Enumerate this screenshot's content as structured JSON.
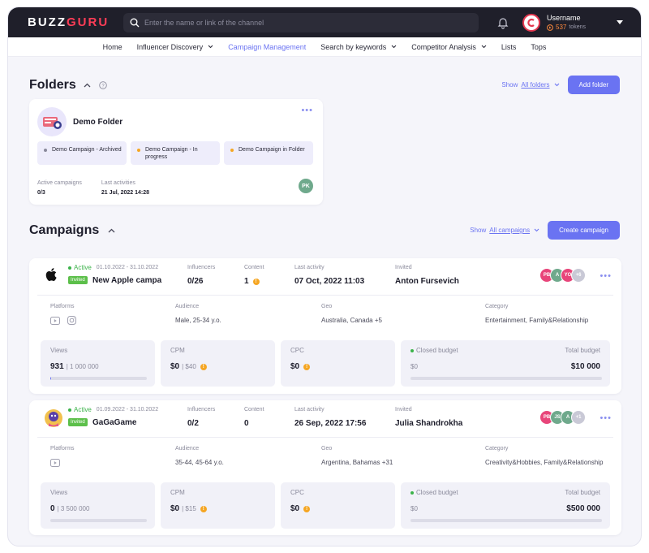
{
  "brand": {
    "logo_left": "BUZZ",
    "logo_accent": "GURU",
    "accent_color": "#6a73f2"
  },
  "search": {
    "placeholder": "Enter the name or link of the channel"
  },
  "user": {
    "name": "Username",
    "tokens_value": "537",
    "tokens_label": "tokens"
  },
  "nav": [
    {
      "label": "Home",
      "has_menu": false,
      "active": false
    },
    {
      "label": "Influencer Discovery",
      "has_menu": true,
      "active": false
    },
    {
      "label": "Campaign Management",
      "has_menu": false,
      "active": true
    },
    {
      "label": "Search by keywords",
      "has_menu": true,
      "active": false
    },
    {
      "label": "Competitor Analysis",
      "has_menu": true,
      "active": false
    },
    {
      "label": "Lists",
      "has_menu": false,
      "active": false
    },
    {
      "label": "Tops",
      "has_menu": false,
      "active": false
    }
  ],
  "folders": {
    "title": "Folders",
    "show_label": "Show",
    "show_value": "All folders",
    "add_button": "Add folder",
    "card": {
      "name": "Demo Folder",
      "more": "•••",
      "chips": [
        {
          "label": "Demo Campaign - Archived",
          "dot_color": "#8a8a9b"
        },
        {
          "label": "Demo Campaign - In progress",
          "dot_color": "#f5a623"
        },
        {
          "label": "Demo Campaign in Folder",
          "dot_color": "#f5a623"
        }
      ],
      "active_label": "Active campaigns",
      "active_value": "0/3",
      "last_label": "Last activities",
      "last_value": "21 Jul, 2022 14:28",
      "owner_initials": "PK"
    }
  },
  "campaigns": {
    "title": "Campaigns",
    "show_label": "Show",
    "show_value": "All campaigns",
    "create_button": "Create campaign",
    "labels": {
      "influencers": "Influencers",
      "content": "Content",
      "last_activity": "Last activity",
      "invited": "Invited",
      "platforms": "Platforms",
      "audience": "Audience",
      "geo": "Geo",
      "category": "Category",
      "views": "Views",
      "cpm": "CPM",
      "cpc": "CPC",
      "closed_budget": "Closed budget",
      "total_budget": "Total budget",
      "status": "Active",
      "invited_badge": "Invited",
      "more": "•••"
    },
    "items": [
      {
        "logo": "apple-icon",
        "dates": "01.10.2022 - 31.10.2022",
        "name": "New Apple campa",
        "influencers": "0/26",
        "content": "1",
        "content_warning": true,
        "last_activity": "07 Oct, 2022 11:03",
        "invited": "Anton Fursevich",
        "avatars": [
          {
            "initials": "PB",
            "color": "#e8457a"
          },
          {
            "initials": "A",
            "color": "#6fa98c"
          },
          {
            "initials": "YO",
            "color": "#e8457a"
          },
          {
            "initials": "+6",
            "color": "#c9c9d6"
          }
        ],
        "audience": "Male, 25-34 y.o.",
        "geo": "Australia, Canada +5",
        "category": "Entertainment, Family&Relationship",
        "platforms": [
          "youtube-icon",
          "instagram-icon"
        ],
        "views": "931",
        "views_total": "| 1 000 000",
        "views_fraction": 0.001,
        "cpm": "$0",
        "cpm_sub": "| $40",
        "cpc": "$0",
        "closed_budget": "$0",
        "total_budget": "$10 000",
        "budget_fraction": 0
      },
      {
        "logo": "character-icon",
        "dates": "01.09.2022 - 31.10.2022",
        "name": "GaGaGame",
        "influencers": "0/2",
        "content": "0",
        "content_warning": false,
        "last_activity": "26 Sep, 2022 17:56",
        "invited": "Julia Shandrokha",
        "avatars": [
          {
            "initials": "PB",
            "color": "#e8457a"
          },
          {
            "initials": "JS",
            "color": "#6fa98c"
          },
          {
            "initials": "A",
            "color": "#6fa98c"
          },
          {
            "initials": "+1",
            "color": "#c9c9d6"
          }
        ],
        "audience": "35-44, 45-64 y.o.",
        "geo": "Argentina, Bahamas +31",
        "category": "Creativity&Hobbies, Family&Relationship",
        "platforms": [
          "youtube-icon"
        ],
        "views": "0",
        "views_total": "| 3 500 000",
        "views_fraction": 0,
        "cpm": "$0",
        "cpm_sub": "| $15",
        "cpc": "$0",
        "closed_budget": "$0",
        "total_budget": "$500 000",
        "budget_fraction": 0
      }
    ]
  }
}
